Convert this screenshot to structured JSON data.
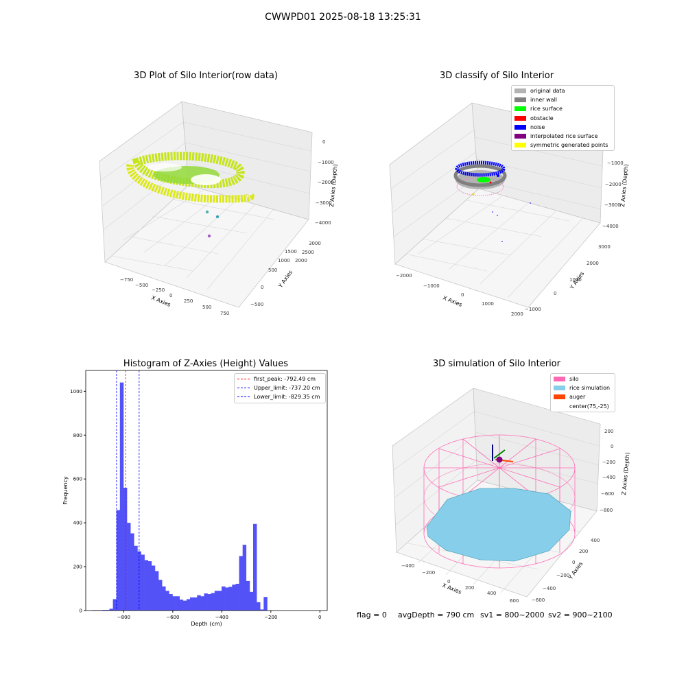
{
  "figure": {
    "suptitle": "CWWPD01 2025-08-18 13:25:31"
  },
  "colors": {
    "axis3d_line": "#c8c8c8",
    "pane": "#f2f2f2",
    "hist_bar": "#5252f7"
  },
  "chart_data": [
    {
      "type": "scatter",
      "title": "3D Plot of Silo Interior(row data)",
      "xlabel": "X Axies",
      "ylabel": "Y Axies",
      "zlabel": "Z Axies (Depth)",
      "x_ticks": [
        "−750",
        "−500",
        "−250",
        "0",
        "250",
        "500",
        "750"
      ],
      "y_ticks": [
        "−500",
        "0",
        "500",
        "1000",
        "1500",
        "2000",
        "2500",
        "3000"
      ],
      "z_ticks": [
        "0",
        "−1000",
        "−2000",
        "−3000",
        "−4000"
      ],
      "colormap": "viridis (yellow-green points)",
      "outlier_points": [
        {
          "color": "#4fb3a8"
        },
        {
          "color": "#3aa3b5"
        },
        {
          "color": "#a35cc9"
        }
      ]
    },
    {
      "type": "scatter",
      "title": "3D classify of Silo Interior",
      "xlabel": "X Axies",
      "ylabel": "Y Axies",
      "zlabel": "Z Axies (Depth)",
      "x_ticks": [
        "−2000",
        "−1000",
        "0",
        "1000",
        "2000"
      ],
      "y_ticks": [
        "−1000",
        "0",
        "1000",
        "2000",
        "3000"
      ],
      "z_ticks": [
        "0",
        "−1000",
        "−2000",
        "−3000",
        "−4000"
      ],
      "legend": [
        {
          "label": "original data",
          "color": "#b3b3b3"
        },
        {
          "label": "inner wall",
          "color": "#808080"
        },
        {
          "label": "rice surface",
          "color": "#00ff00"
        },
        {
          "label": "obstacle",
          "color": "#ff0000"
        },
        {
          "label": "noise",
          "color": "#0000ff"
        },
        {
          "label": "interpolated rice surface",
          "color": "#800080"
        },
        {
          "label": "symmetric generated points",
          "color": "#ffff00"
        }
      ],
      "legend_position": "top-right"
    },
    {
      "type": "bar",
      "title": "Histogram of Z-Axies (Height) Values",
      "xlabel": "Depth (cm)",
      "ylabel": "Frequency",
      "xlim": [
        -955,
        30
      ],
      "ylim": [
        0,
        1095
      ],
      "x_ticks": [
        -800,
        -600,
        -400,
        -200,
        0
      ],
      "y_ticks": [
        0,
        200,
        400,
        600,
        800,
        1000
      ],
      "bin_start": -930,
      "bin_width": 14.3,
      "values": [
        2,
        2,
        2,
        3,
        3,
        8,
        52,
        458,
        1040,
        560,
        400,
        352,
        295,
        270,
        255,
        230,
        225,
        205,
        180,
        140,
        110,
        90,
        75,
        65,
        65,
        50,
        45,
        52,
        60,
        60,
        70,
        65,
        78,
        75,
        80,
        90,
        90,
        110,
        105,
        108,
        118,
        122,
        248,
        300,
        135,
        85,
        395,
        38,
        5,
        62
      ],
      "vlines": [
        {
          "label": "first_peak: -792.49 cm",
          "x": -792.49,
          "color": "#ff0000"
        },
        {
          "label": "Upper_limit: -737.20 cm",
          "x": -737.2,
          "color": "#0000ff"
        },
        {
          "label": "Lower_limit: -829.35 cm",
          "x": -829.35,
          "color": "#0000ff"
        }
      ],
      "legend_position": "top-right"
    },
    {
      "type": "scatter",
      "title": "3D simulation of Silo Interior",
      "xlabel": "X Axies",
      "ylabel": "Y Axies",
      "zlabel": "Z Axies (Depth)",
      "x_ticks": [
        "−400",
        "−200",
        "0",
        "200",
        "400",
        "600"
      ],
      "y_ticks": [
        "−600",
        "−400",
        "−200",
        "0",
        "200",
        "400"
      ],
      "z_ticks": [
        "200",
        "0",
        "−200",
        "−400",
        "−600",
        "−800"
      ],
      "legend": [
        {
          "label": "silo",
          "color": "#ff69b4"
        },
        {
          "label": "rice simulation",
          "color": "#87ceeb"
        },
        {
          "label": "auger",
          "color": "#ff4500"
        },
        {
          "label": "center(75,-25)",
          "color": "#ffffff"
        }
      ],
      "legend_position": "top-right"
    }
  ],
  "footer": {
    "flag": "flag = 0",
    "avg_depth": "avgDepth = 790 cm",
    "sv1": "sv1 = 800~2000",
    "sv2": "sv2 = 900~2100"
  }
}
